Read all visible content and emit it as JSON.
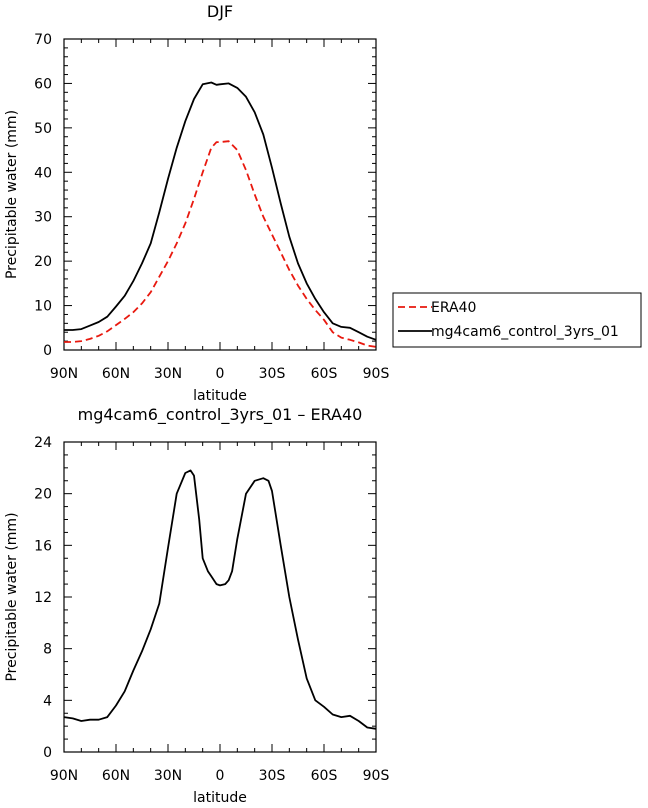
{
  "chart_data": [
    {
      "type": "line",
      "title": "DJF",
      "xlabel": "latitude",
      "ylabel": "Precipitable water (mm)",
      "xlim": [
        90,
        -90
      ],
      "ylim": [
        0,
        70
      ],
      "xticks": [
        90,
        60,
        30,
        0,
        -30,
        -60,
        -90
      ],
      "xtick_labels": [
        "90N",
        "60N",
        "30N",
        "0",
        "30S",
        "60S",
        "90S"
      ],
      "yticks": [
        0,
        10,
        20,
        30,
        40,
        50,
        60,
        70
      ],
      "ytick_labels": [
        "0",
        "10",
        "20",
        "30",
        "40",
        "50",
        "60",
        "70"
      ],
      "grid": false,
      "legend": {
        "position": "right",
        "entries": [
          "ERA40",
          "mg4cam6_control_3yrs_01"
        ]
      },
      "series": [
        {
          "name": "ERA40",
          "color": "#e8190f",
          "dash": "dashed",
          "x": [
            90,
            85,
            80,
            75,
            70,
            65,
            60,
            55,
            50,
            45,
            40,
            35,
            30,
            25,
            20,
            15,
            10,
            5,
            2,
            0,
            -5,
            -10,
            -15,
            -20,
            -25,
            -30,
            -35,
            -40,
            -45,
            -50,
            -55,
            -60,
            -65,
            -70,
            -75,
            -80,
            -85,
            -90
          ],
          "y": [
            1.8,
            1.8,
            2.0,
            2.5,
            3.2,
            4.2,
            5.6,
            7.0,
            8.5,
            10.5,
            13.0,
            16.5,
            20.0,
            24.0,
            28.5,
            34.0,
            40.0,
            45.5,
            46.8,
            46.8,
            47.0,
            45.0,
            40.5,
            35.0,
            30.0,
            26.0,
            22.0,
            18.0,
            14.5,
            11.5,
            9.0,
            6.8,
            4.0,
            2.8,
            2.3,
            1.7,
            1.0,
            0.7
          ]
        },
        {
          "name": "mg4cam6_control_3yrs_01",
          "color": "#000000",
          "dash": "solid",
          "x": [
            90,
            85,
            80,
            75,
            70,
            65,
            60,
            55,
            50,
            45,
            40,
            35,
            30,
            25,
            20,
            15,
            10,
            5,
            2,
            0,
            -5,
            -10,
            -15,
            -20,
            -25,
            -30,
            -35,
            -40,
            -45,
            -50,
            -55,
            -60,
            -65,
            -70,
            -75,
            -80,
            -85,
            -90
          ],
          "y": [
            4.5,
            4.5,
            4.7,
            5.5,
            6.3,
            7.5,
            9.8,
            12.2,
            15.5,
            19.5,
            24.0,
            31.0,
            38.5,
            45.5,
            51.5,
            56.5,
            59.8,
            60.2,
            59.7,
            59.8,
            60.0,
            59.0,
            57.0,
            53.5,
            48.5,
            41.0,
            33.0,
            25.5,
            19.5,
            15.0,
            11.5,
            8.5,
            6.0,
            5.2,
            5.0,
            4.0,
            3.0,
            2.3
          ]
        }
      ]
    },
    {
      "type": "line",
      "title": "mg4cam6_control_3yrs_01 – ERA40",
      "xlabel": "latitude",
      "ylabel": "Precipitable water (mm)",
      "xlim": [
        90,
        -90
      ],
      "ylim": [
        0,
        24
      ],
      "xticks": [
        90,
        60,
        30,
        0,
        -30,
        -60,
        -90
      ],
      "xtick_labels": [
        "90N",
        "60N",
        "30N",
        "0",
        "30S",
        "60S",
        "90S"
      ],
      "yticks": [
        0,
        4,
        8,
        12,
        16,
        20,
        24
      ],
      "ytick_labels": [
        "0",
        "4",
        "8",
        "12",
        "16",
        "20",
        "24"
      ],
      "grid": false,
      "series": [
        {
          "color": "#000000",
          "dash": "solid",
          "x": [
            90,
            85,
            80,
            75,
            70,
            65,
            60,
            55,
            50,
            45,
            40,
            35,
            30,
            25,
            20,
            17,
            15,
            12,
            10,
            7,
            5,
            2,
            0,
            -3,
            -5,
            -7,
            -10,
            -15,
            -20,
            -25,
            -28,
            -30,
            -35,
            -40,
            -45,
            -50,
            -55,
            -60,
            -65,
            -70,
            -75,
            -80,
            -85,
            -90
          ],
          "y": [
            2.7,
            2.6,
            2.4,
            2.5,
            2.5,
            2.7,
            3.6,
            4.7,
            6.3,
            7.8,
            9.5,
            11.5,
            15.8,
            20.0,
            21.6,
            21.8,
            21.4,
            18.0,
            15.0,
            14.0,
            13.6,
            13.0,
            12.9,
            13.0,
            13.3,
            14.0,
            16.5,
            20.0,
            21.0,
            21.2,
            21.0,
            20.2,
            16.0,
            12.0,
            8.7,
            5.7,
            4.0,
            3.5,
            2.9,
            2.7,
            2.8,
            2.4,
            1.9,
            1.8
          ]
        }
      ]
    }
  ]
}
